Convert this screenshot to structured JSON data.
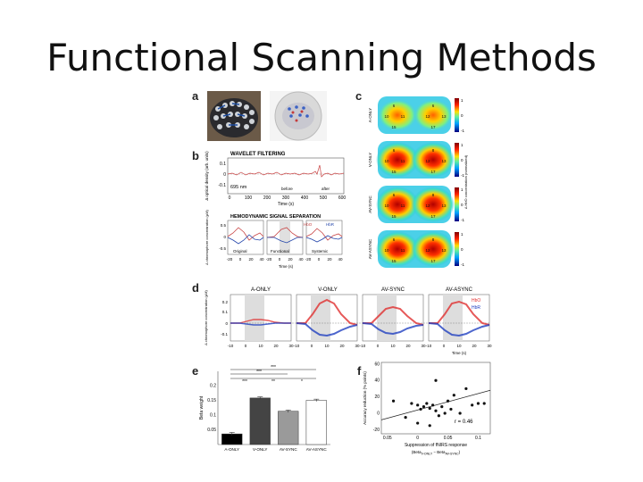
{
  "slide": {
    "title": "Functional Scanning Methods"
  },
  "figure": {
    "panels": {
      "a": "a",
      "b": "b",
      "c": "c",
      "d": "d",
      "e": "e",
      "f": "f"
    },
    "panel_b": {
      "wavelet_title": "WAVELET FILTERING",
      "wavelength": "695 nm",
      "y_label": "Δ optical density (arb. units)",
      "x_label": "Time (s)",
      "x_ticks": [
        "0",
        "100",
        "200",
        "300",
        "400",
        "500",
        "600"
      ],
      "y_ticks": [
        "0.1",
        "0",
        "-0.1"
      ],
      "legend_before": "before",
      "legend_after": "after",
      "sep_title": "HEMODYNAMIC SIGNAL SEPARATION",
      "sep_y_label": "Δ chromophore concentration (μM)",
      "sep_legend_hbo": "HbO",
      "sep_legend_hbr": "HbR",
      "sep_y_ticks": [
        "0.5",
        "0",
        "-0.5"
      ],
      "sub_labels": [
        "Original",
        "Functional",
        "Systemic"
      ],
      "sep_x_ticks": [
        "-20",
        "0",
        "20",
        "40"
      ],
      "sep_x_label": "Time (s)"
    },
    "panel_c": {
      "row_labels": [
        "A-ONLY",
        "V-ONLY",
        "AV-SYNC",
        "AV-ASYNC"
      ],
      "colorbar_ticks": [
        "1",
        "0",
        "-1"
      ],
      "colorbar_label": "Δ HbO concentration (normalized)",
      "channels": [
        "6",
        "8",
        "10",
        "11",
        "12",
        "13",
        "15",
        "17"
      ]
    },
    "panel_d": {
      "conditions": [
        "A-ONLY",
        "V-ONLY",
        "AV-SYNC",
        "AV-ASYNC"
      ],
      "y_label": "Δ chromophore concentration (μM)",
      "y_ticks": [
        "0.2",
        "0.1",
        "0",
        "-0.1"
      ],
      "x_ticks": [
        "-10",
        "0",
        "10",
        "20",
        "30"
      ],
      "x_label": "Time (s)",
      "legend_hbo": "HbO",
      "legend_hbr": "HbR"
    },
    "panel_e": {
      "y_label": "Beta weight",
      "significance": [
        "***",
        "***",
        "***",
        "**",
        "*"
      ]
    },
    "panel_f": {
      "y_label": "Accuracy reduction (% points)",
      "x_label": "Suppression of fNIRS response",
      "x_label_sub": "(Beta",
      "x_label_sub2": "V-ONLY",
      "x_label_sub3": " − Beta",
      "x_label_sub4": "AV-SYNC",
      "x_label_sub5": ")",
      "annotation": "r = 0.46",
      "y_ticks": [
        "60",
        "40",
        "20",
        "0",
        "-20"
      ],
      "x_ticks": [
        "0.05",
        "0",
        "0.05",
        "0.1"
      ]
    },
    "chart_data": [
      {
        "type": "bar",
        "panel": "e",
        "categories": [
          "A-ONLY",
          "V-ONLY",
          "AV-SYNC",
          "AV-ASYNC"
        ],
        "values": [
          0.036,
          0.158,
          0.113,
          0.15
        ],
        "errors": [
          0.005,
          0.004,
          0.004,
          0.004
        ],
        "colors": [
          "#000000",
          "#444444",
          "#9a9a9a",
          "#ffffff"
        ],
        "ylim": [
          0.0,
          0.2
        ],
        "y_ticks": [
          0.05,
          0.1,
          0.15,
          0.2
        ],
        "y_tick_labels": [
          "0.05",
          "0.1",
          "0.15",
          "0.2"
        ],
        "ylabel": "Beta weight"
      },
      {
        "type": "scatter",
        "panel": "f",
        "x": [
          -0.04,
          -0.02,
          -0.01,
          0.0,
          0.005,
          0.01,
          0.015,
          0.02,
          0.025,
          0.03,
          0.035,
          0.04,
          0.045,
          0.05,
          0.055,
          0.06,
          0.07,
          0.08,
          0.09,
          0.1,
          0.11,
          0.0,
          0.02,
          0.03
        ],
        "y": [
          15,
          -5,
          12,
          10,
          5,
          8,
          12,
          6,
          10,
          3,
          -3,
          8,
          0,
          15,
          5,
          22,
          0,
          30,
          10,
          12,
          12,
          -12,
          -15,
          40
        ],
        "fit_line": [
          [
            -0.06,
            -8
          ],
          [
            0.12,
            28
          ]
        ],
        "xlim": [
          -0.06,
          0.12
        ],
        "ylim": [
          -25,
          62
        ],
        "xlabel": "Suppression of fNIRS response",
        "ylabel": "Accuracy reduction (% points)"
      }
    ]
  }
}
